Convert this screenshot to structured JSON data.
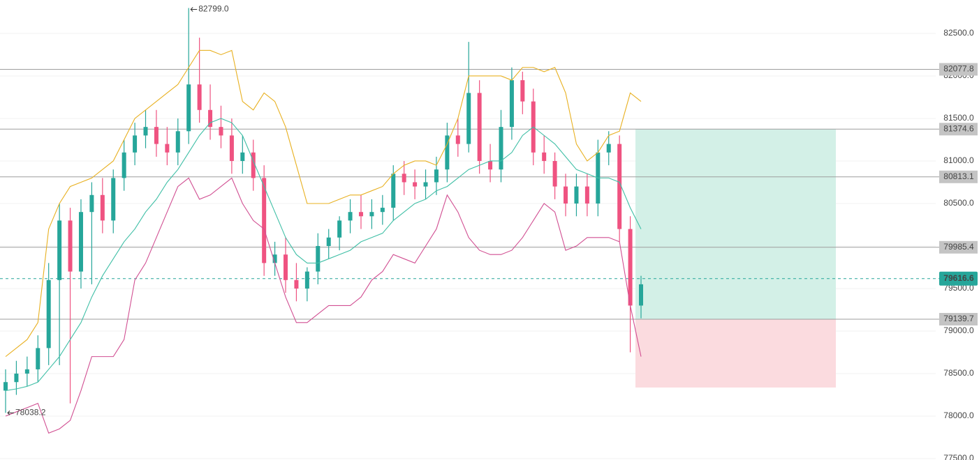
{
  "chart_data": {
    "type": "candlestick",
    "ylim": [
      77484,
      82893
    ],
    "yticks": [
      {
        "value": 77500,
        "label": "77500.0"
      },
      {
        "value": 78000,
        "label": "78000.0"
      },
      {
        "value": 78500,
        "label": "78500.0"
      },
      {
        "value": 79000,
        "label": "79000.0"
      },
      {
        "value": 79500,
        "label": "79500.0"
      },
      {
        "value": 80000,
        "label": "80000.0"
      },
      {
        "value": 80500,
        "label": "80500.0"
      },
      {
        "value": 81000,
        "label": "81000.0"
      },
      {
        "value": 81500,
        "label": "81500.0"
      },
      {
        "value": 82000,
        "label": "82000.0"
      },
      {
        "value": 82500,
        "label": "82500.0"
      }
    ],
    "grid": true,
    "up_color": "#26a69a",
    "down_color": "#ef5381",
    "open": [
      78300,
      78400,
      78500,
      78550,
      78800,
      79600,
      80300,
      79700,
      80400,
      80600,
      80300,
      80800,
      81100,
      81300,
      81400,
      81200,
      81100,
      81350,
      81900,
      81600,
      81400,
      81300,
      81000,
      81100,
      80800,
      79800,
      79900,
      79600,
      79500,
      79700,
      80000,
      80100,
      80300,
      80400,
      80350,
      80400,
      80450,
      80850,
      80750,
      80700,
      80750,
      80900,
      81300,
      81200,
      81800,
      81000,
      80900,
      81400,
      81950,
      81700,
      81100,
      81000,
      80700,
      80500,
      80700,
      80500,
      81100,
      81200,
      80200,
      79300
    ],
    "high": [
      78550,
      78650,
      78700,
      78950,
      79800,
      80500,
      80450,
      80550,
      80750,
      80800,
      80900,
      81250,
      81450,
      81600,
      81600,
      81400,
      81500,
      82799,
      82450,
      81900,
      81650,
      81500,
      81300,
      81250,
      80950,
      80050,
      80100,
      79800,
      79750,
      80150,
      80200,
      80350,
      80550,
      80600,
      80550,
      80600,
      80950,
      81000,
      80900,
      80900,
      81050,
      81450,
      81500,
      82400,
      81950,
      81200,
      81600,
      82100,
      82050,
      81850,
      81300,
      81100,
      80850,
      80850,
      80850,
      81250,
      81350,
      81300,
      80350,
      79650
    ],
    "low": [
      78038.2,
      78250,
      78350,
      78400,
      78600,
      78600,
      78150,
      79500,
      79550,
      80150,
      80150,
      80650,
      80950,
      81150,
      81050,
      80950,
      80950,
      81200,
      81450,
      81250,
      81150,
      80850,
      80850,
      80650,
      79650,
      79650,
      79450,
      79350,
      79350,
      79550,
      79850,
      79950,
      80150,
      80200,
      80200,
      80250,
      80300,
      80600,
      80550,
      80550,
      80600,
      80750,
      81050,
      81100,
      80850,
      80750,
      80750,
      81250,
      81550,
      80950,
      80850,
      80550,
      80350,
      80350,
      80350,
      80350,
      80950,
      80050,
      78750,
      79150
    ],
    "close": [
      78400,
      78500,
      78550,
      78800,
      79600,
      80300,
      79700,
      80400,
      80600,
      80300,
      80800,
      81100,
      81300,
      81400,
      81200,
      81100,
      81350,
      81900,
      81600,
      81400,
      81300,
      81000,
      81100,
      80800,
      79800,
      79900,
      79600,
      79500,
      79700,
      80000,
      80100,
      80300,
      80400,
      80350,
      80400,
      80450,
      80850,
      80750,
      80700,
      80750,
      80900,
      81300,
      81200,
      81800,
      81000,
      80900,
      81400,
      81950,
      81700,
      81100,
      81000,
      80700,
      80500,
      80700,
      80500,
      81100,
      81200,
      80200,
      79300,
      79550
    ],
    "overlays": [
      {
        "color": "#e8b020",
        "values": [
          78700,
          78800,
          78900,
          79100,
          80200,
          80500,
          80700,
          80750,
          80800,
          80900,
          81000,
          81250,
          81500,
          81600,
          81700,
          81800,
          81900,
          82100,
          82300,
          82300,
          82250,
          82300,
          81700,
          81600,
          81800,
          81700,
          81400,
          80950,
          80500,
          80500,
          80500,
          80550,
          80600,
          80600,
          80650,
          80700,
          80850,
          80950,
          81000,
          81000,
          80950,
          81200,
          81500,
          82000,
          82000,
          82000,
          82000,
          81950,
          82100,
          82100,
          82050,
          82100,
          81800,
          81200,
          81000,
          81100,
          81300,
          81350,
          81800,
          81700
        ]
      },
      {
        "color": "#3fbfa6",
        "values": [
          78300,
          78320,
          78350,
          78400,
          78550,
          78700,
          78900,
          79100,
          79400,
          79650,
          79850,
          80050,
          80200,
          80400,
          80550,
          80750,
          80900,
          81100,
          81300,
          81450,
          81500,
          81450,
          81300,
          81000,
          80700,
          80400,
          80100,
          79900,
          79800,
          79800,
          79850,
          79900,
          79950,
          80050,
          80100,
          80150,
          80300,
          80400,
          80500,
          80550,
          80650,
          80700,
          80800,
          80900,
          80950,
          81000,
          81000,
          81100,
          81300,
          81400,
          81300,
          81200,
          81050,
          80900,
          80850,
          80800,
          80800,
          80750,
          80450,
          80200
        ]
      },
      {
        "color": "#d14f92",
        "values": [
          78000,
          78050,
          78100,
          78150,
          77800,
          77850,
          77950,
          78300,
          78700,
          78700,
          78700,
          78900,
          79600,
          79800,
          80100,
          80400,
          80700,
          80800,
          80550,
          80600,
          80700,
          80800,
          80500,
          80300,
          80200,
          79800,
          79400,
          79100,
          79100,
          79200,
          79300,
          79300,
          79300,
          79400,
          79600,
          79700,
          79900,
          79850,
          79800,
          80000,
          80200,
          80600,
          80400,
          80100,
          79950,
          79900,
          79900,
          79950,
          80100,
          80300,
          80500,
          80400,
          79950,
          80000,
          80100,
          80100,
          80100,
          80050,
          79300,
          78700
        ]
      }
    ],
    "levels": [
      82077.8,
      81374.6,
      80813.1,
      79985.4,
      79139.7
    ],
    "current_price": 79616.6,
    "current_color": "#26a69a",
    "annotations": [
      {
        "value": 82799,
        "label": "82799.0"
      },
      78038.2
    ],
    "position": {
      "top": 81374.6,
      "entry": 79139.7,
      "bottom": 78336
    }
  }
}
